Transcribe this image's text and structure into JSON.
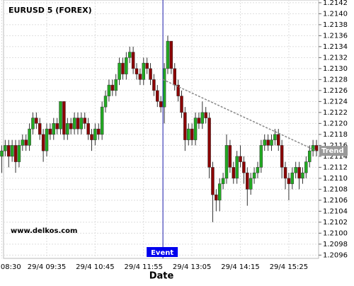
{
  "chart_data": {
    "type": "candlestick",
    "title": "EURUSD 5 (FOREX)",
    "x_label": "Date",
    "watermark": "www.delkos.com",
    "categories": [
      "29/4 08:30",
      null,
      null,
      null,
      null,
      null,
      null,
      null,
      null,
      null,
      null,
      null,
      null,
      "29/4 09:35",
      null,
      null,
      null,
      null,
      null,
      null,
      null,
      null,
      null,
      null,
      null,
      null,
      null,
      "29/4 10:45",
      null,
      null,
      null,
      null,
      null,
      null,
      null,
      null,
      null,
      null,
      null,
      null,
      null,
      "29/4 11:55",
      null,
      null,
      null,
      null,
      null,
      null,
      null,
      null,
      null,
      null,
      null,
      null,
      null,
      "29/4 13:05",
      null,
      null,
      null,
      null,
      null,
      null,
      null,
      null,
      null,
      null,
      null,
      null,
      null,
      "29/4 14:15",
      null,
      null,
      null,
      null,
      null,
      null,
      null,
      null,
      null,
      null,
      null,
      null,
      null,
      "29/4 15:25",
      null,
      null,
      null,
      null,
      null,
      null,
      null,
      null
    ],
    "open": [
      1.2114,
      1.2115,
      1.2116,
      1.2114,
      1.2116,
      1.2113,
      1.2116,
      1.2117,
      1.2116,
      1.2119,
      1.2121,
      1.212,
      1.2118,
      1.2115,
      1.2119,
      1.2118,
      1.212,
      1.2119,
      1.2124,
      1.2118,
      1.212,
      1.2119,
      1.2121,
      1.2119,
      1.2121,
      1.212,
      1.2118,
      1.2117,
      1.2119,
      1.2118,
      1.2123,
      1.2125,
      1.2127,
      1.2126,
      1.2128,
      1.2131,
      1.2129,
      1.2132,
      1.2133,
      1.213,
      1.2129,
      1.2128,
      1.2131,
      1.213,
      1.2128,
      1.2126,
      1.2124,
      1.2123,
      1.213,
      1.2135,
      1.213,
      1.2127,
      1.2125,
      1.2122,
      1.2117,
      1.2119,
      1.2117,
      1.2121,
      1.212,
      1.2122,
      1.2121,
      1.2112,
      1.2107,
      1.2106,
      1.2109,
      1.211,
      1.2116,
      1.2112,
      1.211,
      1.2114,
      1.2113,
      1.2111,
      1.2108,
      1.211,
      1.2111,
      1.2112,
      1.2116,
      1.2117,
      1.2116,
      1.2117,
      1.2118,
      1.2116,
      1.2112,
      1.211,
      1.2109,
      1.2111,
      1.2112,
      1.211,
      1.2111,
      1.2113,
      1.2115,
      1.2116
    ],
    "high": [
      1.2116,
      1.2117,
      1.2117,
      1.2117,
      1.2117,
      1.2117,
      1.2118,
      1.2118,
      1.212,
      1.2122,
      1.2122,
      1.2121,
      1.2119,
      1.212,
      1.212,
      1.2121,
      1.2121,
      1.2124,
      1.2124,
      1.2121,
      1.2121,
      1.2122,
      1.2122,
      1.2122,
      1.2122,
      1.2121,
      1.2119,
      1.212,
      1.212,
      1.2124,
      1.2126,
      1.2128,
      1.2128,
      1.2129,
      1.2132,
      1.2132,
      1.2133,
      1.2134,
      1.2134,
      1.2131,
      1.213,
      1.2132,
      1.2132,
      1.2131,
      1.2129,
      1.2127,
      1.2125,
      1.2131,
      1.2136,
      1.2135,
      1.2131,
      1.2128,
      1.2126,
      1.2123,
      1.212,
      1.212,
      1.2122,
      1.2122,
      1.2124,
      1.2123,
      1.2122,
      1.2113,
      1.2108,
      1.211,
      1.2111,
      1.2118,
      1.2117,
      1.2113,
      1.2115,
      1.2116,
      1.2114,
      1.2112,
      1.2111,
      1.2112,
      1.2113,
      1.2117,
      1.2118,
      1.2118,
      1.2118,
      1.2119,
      1.2119,
      1.2117,
      1.2113,
      1.2111,
      1.2112,
      1.2113,
      1.2113,
      1.2112,
      1.2114,
      1.2116,
      1.2117,
      1.2117
    ],
    "low": [
      1.2111,
      1.2114,
      1.2112,
      1.2113,
      1.2111,
      1.2112,
      1.2115,
      1.2115,
      1.2115,
      1.2118,
      1.2119,
      1.2117,
      1.2113,
      1.2114,
      1.2117,
      1.2117,
      1.2118,
      1.2118,
      1.2117,
      1.2117,
      1.2118,
      1.2118,
      1.2118,
      1.2118,
      1.2119,
      1.2117,
      1.2115,
      1.2116,
      1.2117,
      1.2117,
      1.2122,
      1.2124,
      1.2125,
      1.2125,
      1.2127,
      1.2128,
      1.2128,
      1.2131,
      1.2129,
      1.2128,
      1.2127,
      1.2127,
      1.2129,
      1.2127,
      1.2125,
      1.2123,
      1.2122,
      1.212,
      1.2129,
      1.2129,
      1.2126,
      1.2124,
      1.2121,
      1.2115,
      1.2116,
      1.2116,
      1.2116,
      1.2119,
      1.2119,
      1.212,
      1.211,
      1.2102,
      1.2104,
      1.2104,
      1.2108,
      1.2109,
      1.2111,
      1.2109,
      1.2109,
      1.2112,
      1.2109,
      1.2105,
      1.2107,
      1.2109,
      1.211,
      1.2111,
      1.2115,
      1.2115,
      1.2115,
      1.2116,
      1.2115,
      1.211,
      1.2108,
      1.2106,
      1.2108,
      1.211,
      1.2108,
      1.2109,
      1.211,
      1.2112,
      1.2114,
      1.2114
    ],
    "close": [
      1.2115,
      1.2116,
      1.2114,
      1.2116,
      1.2113,
      1.2116,
      1.2117,
      1.2116,
      1.2119,
      1.2121,
      1.212,
      1.2118,
      1.2115,
      1.2119,
      1.2118,
      1.212,
      1.2119,
      1.2124,
      1.2118,
      1.212,
      1.2119,
      1.2121,
      1.2119,
      1.2121,
      1.212,
      1.2118,
      1.2117,
      1.2119,
      1.2118,
      1.2123,
      1.2125,
      1.2127,
      1.2126,
      1.2128,
      1.2131,
      1.2129,
      1.2132,
      1.2133,
      1.213,
      1.2129,
      1.2128,
      1.2131,
      1.213,
      1.2128,
      1.2126,
      1.2124,
      1.2123,
      1.213,
      1.2135,
      1.213,
      1.2127,
      1.2125,
      1.2122,
      1.2117,
      1.2119,
      1.2117,
      1.2121,
      1.212,
      1.2122,
      1.2121,
      1.2112,
      1.2107,
      1.2106,
      1.2109,
      1.211,
      1.2116,
      1.2112,
      1.211,
      1.2114,
      1.2113,
      1.2111,
      1.2108,
      1.211,
      1.2111,
      1.2112,
      1.2116,
      1.2117,
      1.2116,
      1.2117,
      1.2118,
      1.2116,
      1.2112,
      1.211,
      1.2109,
      1.2111,
      1.2112,
      1.211,
      1.2111,
      1.2113,
      1.2115,
      1.2116,
      1.2115
    ],
    "up_color": "#22aa22",
    "down_color": "#8b0000",
    "ylim": [
      1.20954,
      1.21425
    ],
    "yticks": [
      1.2096,
      1.2098,
      {
        "value": 1.21,
        "label": "1.2100"
      },
      1.2102,
      1.2104,
      1.2106,
      1.2108,
      {
        "value": 1.211,
        "label": "1.2110"
      },
      1.2112,
      1.2114,
      1.2116,
      1.2118,
      {
        "value": 1.212,
        "label": "1.2120"
      },
      1.2122,
      1.2124,
      1.2126,
      1.2128,
      {
        "value": 1.213,
        "label": "1.2130"
      },
      1.2132,
      1.2134,
      1.2136,
      1.2138,
      {
        "value": 1.214,
        "label": "1.2140"
      },
      1.2142
    ],
    "grid": true,
    "event": {
      "label": "Event",
      "index": 46.6
    },
    "trend": {
      "label": "Trend",
      "start": [
        46.6,
        1.2128
      ],
      "end": [
        91,
        1.2115
      ]
    }
  }
}
